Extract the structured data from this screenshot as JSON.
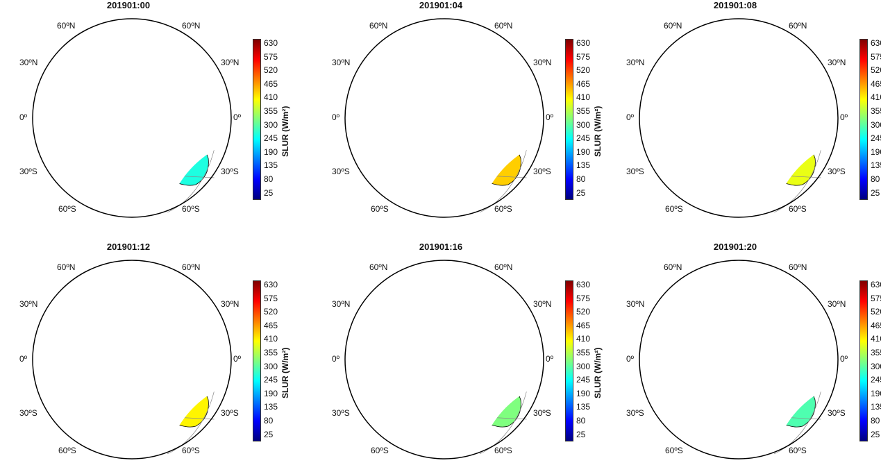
{
  "colorbar": {
    "label": "SLUR (W/m²)",
    "ticks": [
      "630",
      "575",
      "520",
      "465",
      "410",
      "355",
      "300",
      "245",
      "190",
      "135",
      "80",
      "25"
    ],
    "colors": [
      "#00007f",
      "#0000ff",
      "#007fff",
      "#00ffff",
      "#7fff7f",
      "#ffff00",
      "#ff7f00",
      "#ff0000",
      "#7f0000"
    ]
  },
  "lat_labels": {
    "n60": "60ºN",
    "n30": "30ºN",
    "eq": "0º",
    "s30": "30ºS",
    "s60": "60ºS"
  },
  "panels": [
    {
      "title": "201901:00",
      "level": 0.35
    },
    {
      "title": "201901:04",
      "level": 0.62
    },
    {
      "title": "201901:08",
      "level": 0.55
    },
    {
      "title": "201901:12",
      "level": 0.58
    },
    {
      "title": "201901:16",
      "level": 0.45
    },
    {
      "title": "201901:20",
      "level": 0.4
    }
  ]
}
